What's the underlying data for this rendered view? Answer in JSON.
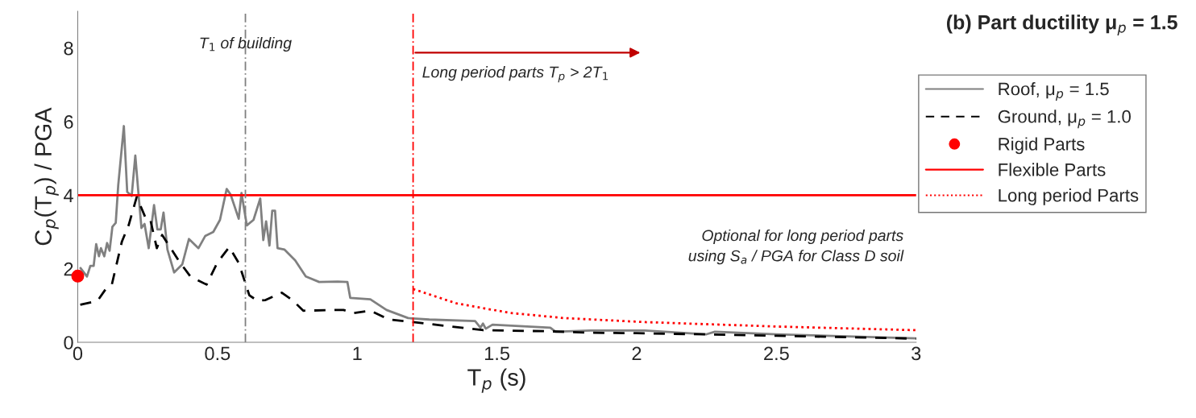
{
  "chart_data": {
    "type": "line",
    "title": "(b) Part ductility μ$_{p}$ = 1.5",
    "xlabel": "T$_{p}$ (s)",
    "ylabel": "C$_{p}$(T$_{p}$) / PGA",
    "xlim": [
      0,
      3
    ],
    "ylim": [
      0,
      9
    ],
    "xticks": [
      0,
      0.5,
      1,
      1.5,
      2,
      2.5,
      3
    ],
    "yticks": [
      0,
      2,
      4,
      6,
      8
    ],
    "grid": false,
    "legend": "right",
    "series": [
      {
        "name": "Roof, μ$_{p}$ = 1.5",
        "color": "#808080",
        "line_style": "solid",
        "x": [
          0.01,
          0.033,
          0.045,
          0.057,
          0.066,
          0.076,
          0.083,
          0.095,
          0.105,
          0.114,
          0.124,
          0.136,
          0.145,
          0.165,
          0.177,
          0.193,
          0.206,
          0.218,
          0.228,
          0.239,
          0.254,
          0.273,
          0.285,
          0.297,
          0.307,
          0.321,
          0.345,
          0.374,
          0.398,
          0.432,
          0.456,
          0.485,
          0.509,
          0.533,
          0.547,
          0.576,
          0.586,
          0.605,
          0.629,
          0.653,
          0.664,
          0.674,
          0.686,
          0.696,
          0.706,
          0.715,
          0.74,
          0.778,
          0.816,
          0.864,
          0.93,
          0.965,
          0.975,
          1.047,
          1.105,
          1.182,
          1.258,
          1.422,
          1.441,
          1.45,
          1.46,
          1.484,
          1.691,
          1.71,
          1.835,
          2.03,
          2.25,
          2.28,
          2.5,
          3.0
        ],
        "values": [
          2.02,
          1.79,
          2.08,
          2.08,
          2.67,
          2.34,
          2.56,
          2.34,
          2.7,
          2.49,
          3.14,
          3.25,
          4.28,
          5.88,
          4.09,
          3.98,
          5.08,
          3.98,
          3.11,
          3.22,
          2.56,
          3.73,
          3.07,
          3.07,
          3.53,
          2.52,
          1.9,
          2.12,
          2.81,
          2.56,
          2.89,
          3.0,
          3.33,
          4.17,
          4.02,
          3.36,
          4.06,
          3.18,
          3.33,
          3.91,
          2.78,
          3.29,
          2.63,
          3.58,
          3.58,
          2.56,
          2.52,
          2.23,
          1.79,
          1.64,
          1.65,
          1.64,
          1.21,
          1.17,
          0.88,
          0.66,
          0.62,
          0.58,
          0.4,
          0.51,
          0.37,
          0.48,
          0.4,
          0.29,
          0.32,
          0.32,
          0.22,
          0.29,
          0.22,
          0.11
        ]
      },
      {
        "name": "Ground, μ$_{p}$ = 1.0",
        "color": "#000000",
        "line_style": "dashed",
        "x": [
          0.009,
          0.071,
          0.105,
          0.122,
          0.158,
          0.182,
          0.211,
          0.244,
          0.259,
          0.283,
          0.302,
          0.364,
          0.403,
          0.461,
          0.499,
          0.542,
          0.576,
          0.614,
          0.643,
          0.672,
          0.73,
          0.768,
          0.807,
          0.93,
          0.951,
          0.989,
          1.047,
          1.114,
          1.2,
          1.451,
          1.69,
          1.835,
          2.0,
          2.5,
          3.0
        ],
        "values": [
          1.02,
          1.13,
          1.5,
          1.57,
          2.74,
          3.18,
          3.95,
          3.36,
          3.36,
          2.56,
          2.92,
          2.19,
          1.79,
          1.57,
          2.16,
          2.59,
          2.16,
          1.28,
          1.13,
          1.15,
          1.35,
          1.15,
          0.86,
          0.88,
          0.88,
          0.8,
          0.86,
          0.62,
          0.55,
          0.33,
          0.3,
          0.26,
          0.25,
          0.18,
          0.1
        ]
      },
      {
        "name": "Rigid Parts",
        "type": "scatter",
        "color": "#ff0000",
        "marker": "circle",
        "x": [
          0
        ],
        "values": [
          1.8
        ]
      },
      {
        "name": "Flexible Parts",
        "color": "#ff0000",
        "line_style": "solid",
        "x": [
          0,
          3
        ],
        "values": [
          4,
          4
        ]
      },
      {
        "name": "Long period Parts",
        "color": "#ff0000",
        "line_style": "dotted",
        "x": [
          1.2,
          1.355,
          1.547,
          1.74,
          2.03,
          2.5,
          3.0
        ],
        "values": [
          1.45,
          1.06,
          0.8,
          0.66,
          0.55,
          0.43,
          0.33
        ]
      }
    ],
    "ref_lines": [
      {
        "axis": "x",
        "value": 0.6,
        "label": "T$_{1}$ of building",
        "color": "#808080",
        "line_style": "dashed"
      },
      {
        "axis": "x",
        "value": 1.2,
        "color": "#ff0000",
        "line_style": "dashed"
      }
    ],
    "annotations": [
      "Long period parts T$_{p}$ > 2T$_{1}$",
      "Optional for long period parts\nusing S$_{a}$ / PGA for Class D soil"
    ]
  }
}
